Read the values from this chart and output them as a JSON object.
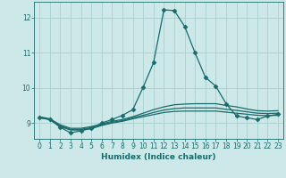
{
  "bg_color": "#cce8e8",
  "grid_color": "#aacfcf",
  "line_color": "#1a6b6b",
  "xlabel": "Humidex (Indice chaleur)",
  "xlim": [
    -0.5,
    23.5
  ],
  "ylim": [
    8.55,
    12.45
  ],
  "yticks": [
    9,
    10,
    11,
    12
  ],
  "xticks": [
    0,
    1,
    2,
    3,
    4,
    5,
    6,
    7,
    8,
    9,
    10,
    11,
    12,
    13,
    14,
    15,
    16,
    17,
    18,
    19,
    20,
    21,
    22,
    23
  ],
  "series": [
    {
      "x": [
        0,
        1,
        2,
        3,
        4,
        5,
        6,
        7,
        8,
        9,
        10,
        11,
        12,
        13,
        14,
        15,
        16,
        17,
        18,
        19,
        20,
        21,
        22,
        23
      ],
      "y": [
        9.15,
        9.1,
        8.88,
        8.72,
        8.78,
        8.85,
        9.0,
        9.1,
        9.22,
        9.38,
        10.02,
        10.72,
        12.22,
        12.2,
        11.75,
        11.0,
        10.3,
        10.05,
        9.55,
        9.2,
        9.15,
        9.1,
        9.2,
        9.25
      ],
      "marker": "D",
      "markersize": 2.5,
      "linewidth": 0.9
    },
    {
      "x": [
        0,
        1,
        2,
        3,
        4,
        5,
        6,
        7,
        8,
        9,
        10,
        11,
        12,
        13,
        14,
        15,
        16,
        17,
        18,
        19,
        20,
        21,
        22,
        23
      ],
      "y": [
        9.18,
        9.12,
        8.95,
        8.85,
        8.85,
        8.9,
        8.97,
        9.05,
        9.1,
        9.18,
        9.28,
        9.38,
        9.46,
        9.52,
        9.54,
        9.55,
        9.55,
        9.55,
        9.5,
        9.46,
        9.4,
        9.35,
        9.34,
        9.35
      ],
      "marker": null,
      "markersize": 0,
      "linewidth": 0.9
    },
    {
      "x": [
        0,
        1,
        2,
        3,
        4,
        5,
        6,
        7,
        8,
        9,
        10,
        11,
        12,
        13,
        14,
        15,
        16,
        17,
        18,
        19,
        20,
        21,
        22,
        23
      ],
      "y": [
        9.15,
        9.1,
        8.9,
        8.8,
        8.8,
        8.84,
        8.93,
        9.0,
        9.05,
        9.12,
        9.18,
        9.24,
        9.3,
        9.33,
        9.34,
        9.34,
        9.34,
        9.34,
        9.31,
        9.28,
        9.25,
        9.22,
        9.21,
        9.22
      ],
      "marker": null,
      "markersize": 0,
      "linewidth": 0.9
    },
    {
      "x": [
        0,
        1,
        2,
        3,
        4,
        5,
        6,
        7,
        8,
        9,
        10,
        11,
        12,
        13,
        14,
        15,
        16,
        17,
        18,
        19,
        20,
        21,
        22,
        23
      ],
      "y": [
        9.16,
        9.11,
        8.92,
        8.82,
        8.82,
        8.87,
        8.95,
        9.02,
        9.07,
        9.15,
        9.22,
        9.3,
        9.37,
        9.41,
        9.43,
        9.43,
        9.43,
        9.43,
        9.39,
        9.36,
        9.32,
        9.28,
        9.27,
        9.28
      ],
      "marker": null,
      "markersize": 0,
      "linewidth": 0.9
    }
  ]
}
